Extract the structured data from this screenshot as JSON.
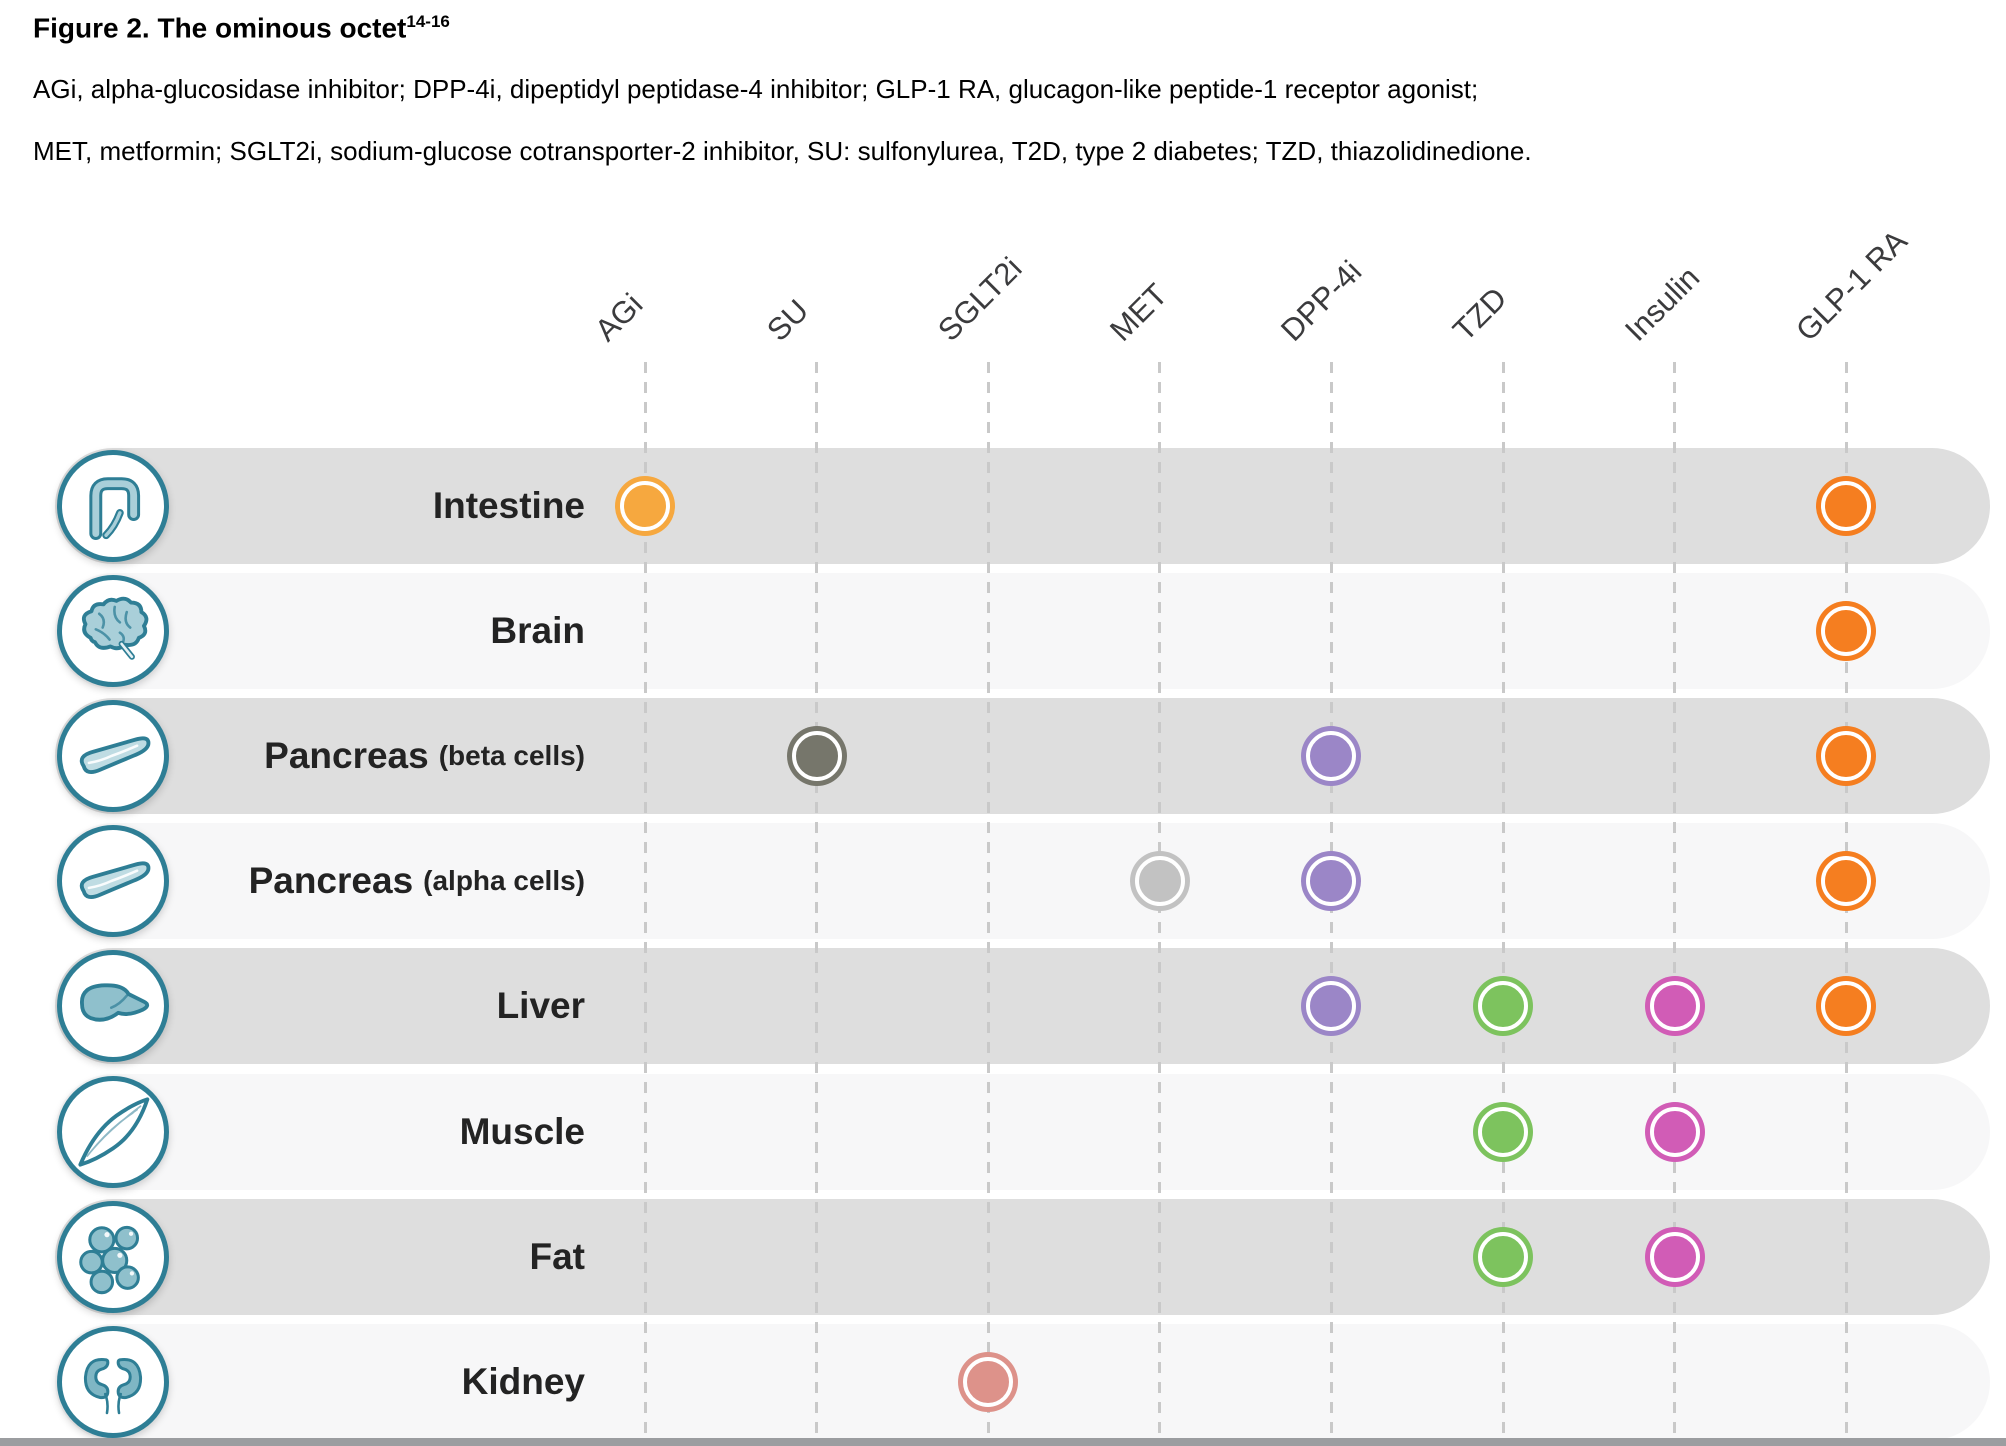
{
  "header": {
    "title": "Figure 2. The ominous octet",
    "title_ref": "14-16",
    "abbreviations": [
      "AGi, alpha-glucosidase inhibitor; DPP-4i, dipeptidyl peptidase-4 inhibitor; GLP-1 RA, glucagon-like peptide-1 receptor agonist;",
      "MET, metformin; SGLT2i, sodium-glucose cotransporter-2 inhibitor, SU: sulfonylurea, T2D, type 2 diabetes; TZD, thiazolidinedione."
    ]
  },
  "matrix": {
    "columns": [
      {
        "id": "agi",
        "label": "AGi",
        "dot_color": "#F6A83F"
      },
      {
        "id": "su",
        "label": "SU",
        "dot_color": "#76766B"
      },
      {
        "id": "sglt2i",
        "label": "SGLT2i",
        "dot_color": "#DD928A"
      },
      {
        "id": "met",
        "label": "MET",
        "dot_color": "#C2C2C2"
      },
      {
        "id": "dpp4i",
        "label": "DPP-4i",
        "dot_color": "#9B86C7"
      },
      {
        "id": "tzd",
        "label": "TZD",
        "dot_color": "#7DC35E"
      },
      {
        "id": "insulin",
        "label": "Insulin",
        "dot_color": "#D15CB6"
      },
      {
        "id": "glp1ra",
        "label": "GLP-1 RA",
        "dot_color": "#F57E20"
      }
    ],
    "rows": [
      {
        "organ": "Intestine",
        "sub": "",
        "icon": "intestine",
        "dots": [
          "agi",
          "glp1ra"
        ]
      },
      {
        "organ": "Brain",
        "sub": "",
        "icon": "brain",
        "dots": [
          "glp1ra"
        ]
      },
      {
        "organ": "Pancreas",
        "sub": "(beta cells)",
        "icon": "pancreas",
        "dots": [
          "su",
          "dpp4i",
          "glp1ra"
        ]
      },
      {
        "organ": "Pancreas",
        "sub": "(alpha cells)",
        "icon": "pancreas",
        "dots": [
          "met",
          "dpp4i",
          "glp1ra"
        ]
      },
      {
        "organ": "Liver",
        "sub": "",
        "icon": "liver",
        "dots": [
          "dpp4i",
          "tzd",
          "insulin",
          "glp1ra"
        ]
      },
      {
        "organ": "Muscle",
        "sub": "",
        "icon": "muscle",
        "dots": [
          "tzd",
          "insulin"
        ]
      },
      {
        "organ": "Fat",
        "sub": "",
        "icon": "fat",
        "dots": [
          "tzd",
          "insulin"
        ]
      },
      {
        "organ": "Kidney",
        "sub": "",
        "icon": "kidney",
        "dots": [
          "sglt2i"
        ]
      }
    ],
    "colors": {
      "row_shade": "#DEDEDE",
      "row_light": "#F7F7F8",
      "grid_line": "#C9C9C9",
      "icon_stroke": "#2E7E95",
      "icon_fill_light": "#A9CFD9",
      "icon_fill_dark": "#8FC0CC",
      "label_text": "#232323",
      "column_text": "#3B3B3D",
      "bottom_bar": "#9B9DA0"
    }
  }
}
